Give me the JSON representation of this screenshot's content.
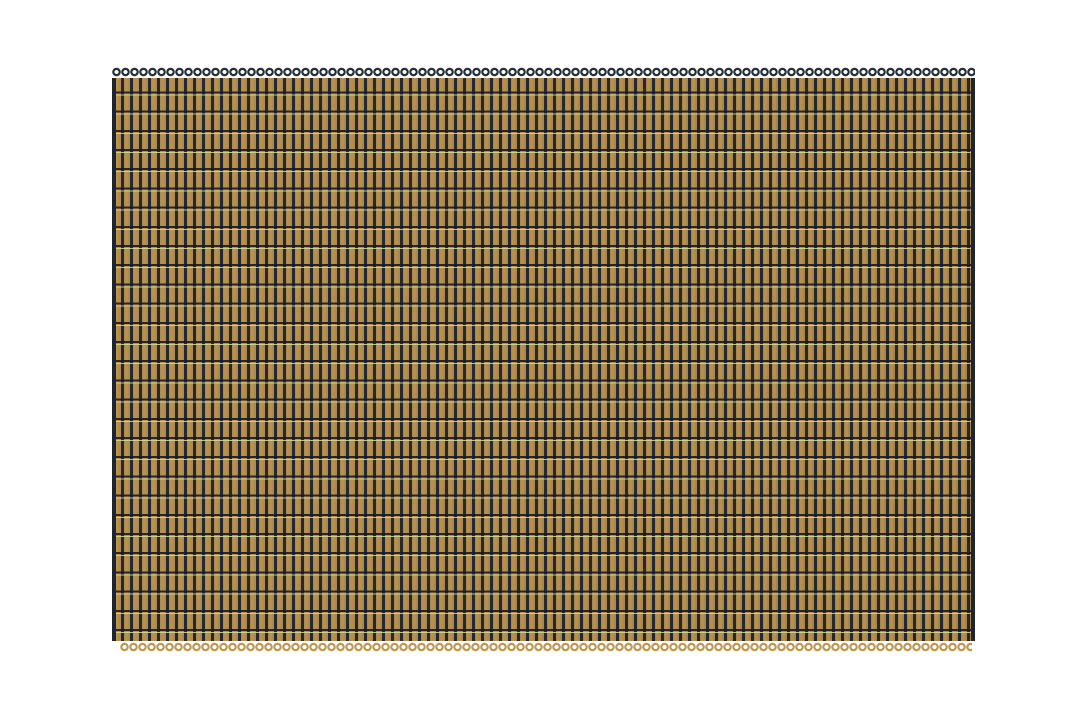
{
  "image": {
    "subject": "woven rug",
    "colors": {
      "background": "#ffffff",
      "weft": "#1f2a33",
      "warp": "#b08a4e",
      "stitch": "#d8d49a"
    }
  }
}
